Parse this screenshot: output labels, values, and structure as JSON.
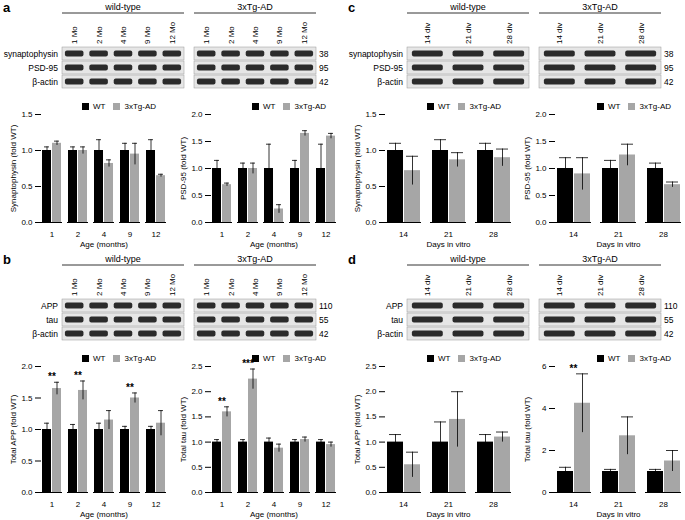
{
  "chart_data": [
    {
      "type": "bar",
      "categories": [
        "1",
        "2",
        "4",
        "9",
        "12"
      ],
      "x_label": "Age (months)",
      "y_label": "Synaptophysin (fold WT)",
      "ylim": [
        0,
        1.5
      ],
      "yticks": [
        {
          "value": 0,
          "label": "0.0"
        },
        0.5,
        {
          "value": 1,
          "label": "1.0"
        },
        1.5
      ],
      "grid": false,
      "legend": "top-right",
      "series": [
        {
          "name": "WT",
          "color": "#000000",
          "values": [
            1.0,
            1.0,
            1.0,
            1.0,
            1.0
          ],
          "errors": [
            0.05,
            0.05,
            0.15,
            0.1,
            0.15
          ]
        },
        {
          "name": "3xTg-AD",
          "color": "#a6a6a6",
          "values": [
            1.1,
            1.0,
            0.82,
            0.95,
            0.65
          ],
          "errors": [
            0.03,
            0.05,
            0.05,
            0.15,
            0.02
          ]
        }
      ],
      "annotations": []
    },
    {
      "type": "bar",
      "categories": [
        "1",
        "2",
        "4",
        "9",
        "12"
      ],
      "x_label": "Age (months)",
      "y_label": "PSD-95 (fold WT)",
      "ylim": [
        0,
        2
      ],
      "yticks": [
        {
          "value": 0,
          "label": "0.0"
        },
        0.5,
        {
          "value": 1,
          "label": "1.0"
        },
        1.5,
        {
          "value": 2,
          "label": "2.0"
        }
      ],
      "grid": false,
      "legend": "top-right",
      "series": [
        {
          "name": "WT",
          "color": "#000000",
          "values": [
            1.0,
            1.0,
            1.0,
            1.0,
            1.0
          ],
          "errors": [
            0.15,
            0.1,
            0.45,
            0.15,
            0.45
          ]
        },
        {
          "name": "3xTg-AD",
          "color": "#a6a6a6",
          "values": [
            0.7,
            1.0,
            0.25,
            1.65,
            1.6
          ],
          "errors": [
            0.03,
            0.1,
            0.08,
            0.05,
            0.05
          ]
        }
      ],
      "annotations": []
    },
    {
      "type": "bar",
      "categories": [
        "1",
        "2",
        "4",
        "9",
        "12"
      ],
      "x_label": "Age (months)",
      "y_label": "Total APP (fold WT)",
      "ylim": [
        0,
        2
      ],
      "yticks": [
        {
          "value": 0,
          "label": "0.0"
        },
        0.5,
        {
          "value": 1,
          "label": "1.0"
        },
        1.5,
        {
          "value": 2,
          "label": "2.0"
        }
      ],
      "grid": false,
      "legend": "top-right",
      "series": [
        {
          "name": "WT",
          "color": "#000000",
          "values": [
            1.0,
            1.0,
            1.0,
            1.0,
            1.0
          ],
          "errors": [
            0.1,
            0.08,
            0.1,
            0.05,
            0.05
          ]
        },
        {
          "name": "3xTg-AD",
          "color": "#a6a6a6",
          "values": [
            1.65,
            1.62,
            1.15,
            1.5,
            1.1
          ],
          "errors": [
            0.1,
            0.15,
            0.15,
            0.08,
            0.2
          ]
        }
      ],
      "annotations": [
        {
          "category": "1",
          "text": "**"
        },
        {
          "category": "2",
          "text": "**"
        },
        {
          "category": "9",
          "text": "**"
        }
      ]
    },
    {
      "type": "bar",
      "categories": [
        "1",
        "2",
        "4",
        "9",
        "12"
      ],
      "x_label": "Age (months)",
      "y_label": "Total tau (fold WT)",
      "ylim": [
        0,
        2.5
      ],
      "yticks": [
        {
          "value": 0,
          "label": "0.0"
        },
        0.5,
        {
          "value": 1,
          "label": "1.0"
        },
        1.5,
        {
          "value": 2,
          "label": "2.0"
        },
        2.5
      ],
      "grid": false,
      "legend": "top-right",
      "series": [
        {
          "name": "WT",
          "color": "#000000",
          "values": [
            1.0,
            1.0,
            1.0,
            1.0,
            1.0
          ],
          "errors": [
            0.05,
            0.05,
            0.08,
            0.05,
            0.05
          ]
        },
        {
          "name": "3xTg-AD",
          "color": "#a6a6a6",
          "values": [
            1.6,
            2.25,
            0.88,
            1.05,
            0.95
          ],
          "errors": [
            0.1,
            0.2,
            0.08,
            0.05,
            0.05
          ]
        }
      ],
      "annotations": [
        {
          "category": "1",
          "text": "**"
        },
        {
          "category": "2",
          "text": "***"
        }
      ]
    },
    {
      "type": "bar",
      "categories": [
        "14",
        "21",
        "28"
      ],
      "x_label": "Days in vitro",
      "y_label": "Synaptophysin (fold WT)",
      "ylim": [
        0,
        1.5
      ],
      "yticks": [
        {
          "value": 0,
          "label": "0.0"
        },
        0.5,
        {
          "value": 1,
          "label": "1.0"
        },
        1.5
      ],
      "grid": false,
      "legend": "top-right",
      "series": [
        {
          "name": "WT",
          "color": "#000000",
          "values": [
            1.0,
            1.0,
            1.0
          ],
          "errors": [
            0.1,
            0.15,
            0.1
          ]
        },
        {
          "name": "3xTg-AD",
          "color": "#a6a6a6",
          "values": [
            0.72,
            0.87,
            0.9
          ],
          "errors": [
            0.2,
            0.1,
            0.12
          ]
        }
      ],
      "annotations": []
    },
    {
      "type": "bar",
      "categories": [
        "14",
        "21",
        "28"
      ],
      "x_label": "Days in vitro",
      "y_label": "PSD-95 (fold WT)",
      "ylim": [
        0,
        2
      ],
      "yticks": [
        {
          "value": 0,
          "label": "0.0"
        },
        0.5,
        {
          "value": 1,
          "label": "1.0"
        },
        1.5,
        {
          "value": 2,
          "label": "2.0"
        }
      ],
      "grid": false,
      "legend": "top-right",
      "series": [
        {
          "name": "WT",
          "color": "#000000",
          "values": [
            1.0,
            1.0,
            1.0
          ],
          "errors": [
            0.2,
            0.15,
            0.1
          ]
        },
        {
          "name": "3xTg-AD",
          "color": "#a6a6a6",
          "values": [
            0.9,
            1.25,
            0.7
          ],
          "errors": [
            0.3,
            0.2,
            0.05
          ]
        }
      ],
      "annotations": []
    },
    {
      "type": "bar",
      "categories": [
        "14",
        "21",
        "28"
      ],
      "x_label": "Days in vitro",
      "y_label": "Total APP (fold WT)",
      "ylim": [
        0,
        2.5
      ],
      "yticks": [
        {
          "value": 0,
          "label": "0.0"
        },
        0.5,
        {
          "value": 1,
          "label": "1.0"
        },
        1.5,
        {
          "value": 2,
          "label": "2.0"
        },
        2.5
      ],
      "grid": false,
      "legend": "top-right",
      "series": [
        {
          "name": "WT",
          "color": "#000000",
          "values": [
            1.0,
            1.0,
            1.0
          ],
          "errors": [
            0.15,
            0.4,
            0.15
          ]
        },
        {
          "name": "3xTg-AD",
          "color": "#a6a6a6",
          "values": [
            0.55,
            1.45,
            1.1
          ],
          "errors": [
            0.25,
            0.55,
            0.1
          ]
        }
      ],
      "annotations": []
    },
    {
      "type": "bar",
      "categories": [
        "14",
        "21",
        "28"
      ],
      "x_label": "Days in vitro",
      "y_label": "Total tau (fold WT)",
      "ylim": [
        0,
        6
      ],
      "yticks": [
        0,
        2,
        4,
        6
      ],
      "grid": false,
      "legend": "top-right",
      "series": [
        {
          "name": "WT",
          "color": "#000000",
          "values": [
            1.0,
            1.0,
            1.0
          ],
          "errors": [
            0.2,
            0.1,
            0.1
          ]
        },
        {
          "name": "3xTg-AD",
          "color": "#a6a6a6",
          "values": [
            4.25,
            2.7,
            1.5
          ],
          "errors": [
            1.4,
            0.9,
            0.5
          ]
        }
      ],
      "annotations": [
        {
          "category": "14",
          "text": "**"
        }
      ]
    }
  ],
  "blots": [
    {
      "label": "a",
      "groups": [
        {
          "name": "wild-type",
          "lanes": [
            "1 Mo",
            "2 Mo",
            "4 Mo",
            "9 Mo",
            "12 Mo"
          ]
        },
        {
          "name": "3xTg-AD",
          "lanes": [
            "1 Mo",
            "2 Mo",
            "4 Mo",
            "9 Mo",
            "12 Mo"
          ]
        }
      ],
      "rows": [
        {
          "name": "synaptophysin",
          "marker": 38
        },
        {
          "name": "PSD-95",
          "marker": 95
        },
        {
          "name": "β-actin",
          "marker": 42
        }
      ]
    },
    {
      "label": "b",
      "groups": [
        {
          "name": "wild-type",
          "lanes": [
            "1 Mo",
            "2 Mo",
            "4 Mo",
            "9 Mo",
            "12 Mo"
          ]
        },
        {
          "name": "3xTg-AD",
          "lanes": [
            "1 Mo",
            "2 Mo",
            "4 Mo",
            "9 Mo",
            "12 Mo"
          ]
        }
      ],
      "rows": [
        {
          "name": "APP",
          "marker": 110
        },
        {
          "name": "tau",
          "marker": 55
        },
        {
          "name": "β-actin",
          "marker": 42
        }
      ]
    },
    {
      "label": "c",
      "groups": [
        {
          "name": "wild-type",
          "lanes": [
            "14 div",
            "21 div",
            "28 div"
          ]
        },
        {
          "name": "3xTg-AD",
          "lanes": [
            "14 div",
            "21 div",
            "28 div"
          ]
        }
      ],
      "rows": [
        {
          "name": "synaptophysin",
          "marker": 38
        },
        {
          "name": "PSD-95",
          "marker": 95
        },
        {
          "name": "β-actin",
          "marker": 42
        }
      ]
    },
    {
      "label": "d",
      "groups": [
        {
          "name": "wild-type",
          "lanes": [
            "14 div",
            "21 div",
            "28 div"
          ]
        },
        {
          "name": "3xTg-AD",
          "lanes": [
            "14 div",
            "21 div",
            "28 div"
          ]
        }
      ],
      "rows": [
        {
          "name": "APP",
          "marker": 110
        },
        {
          "name": "tau",
          "marker": 55
        },
        {
          "name": "β-actin",
          "marker": 42
        }
      ]
    }
  ]
}
